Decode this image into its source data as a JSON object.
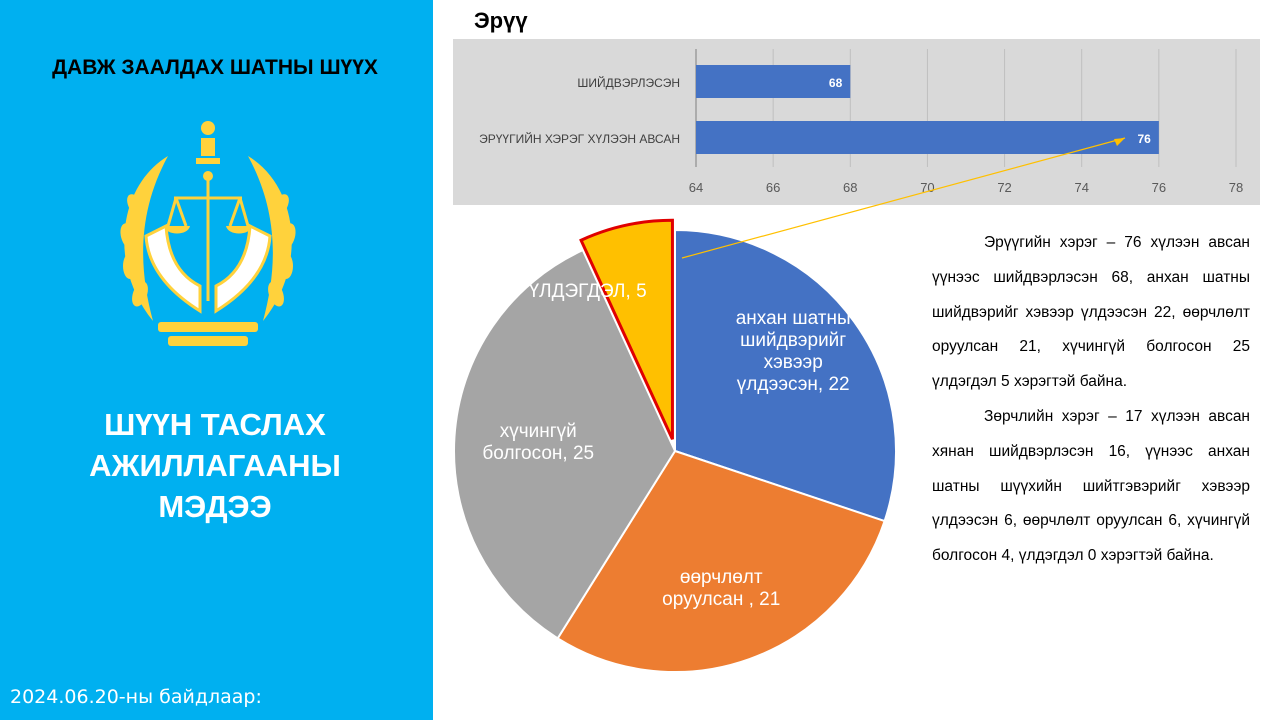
{
  "left_panel": {
    "court_title": "ДАВЖ ЗААЛДАХ ШАТНЫ ШҮҮХ",
    "main_title": "ШҮҮН ТАСЛАХ АЖИЛЛАГААНЫ МЭДЭЭ",
    "date_note": "2024.06.20-ны байдлаар:",
    "emblem_icon": "court-emblem-icon"
  },
  "colors": {
    "panel_blue": "#00b0f0",
    "bar_blue": "#4472c4",
    "pie_blue": "#4472c4",
    "pie_orange": "#ed7d31",
    "pie_gray": "#a5a5a5",
    "pie_yellow": "#ffc000",
    "highlight_red": "#e00000",
    "connector": "#ffc000"
  },
  "description": {
    "p1": "Эрүүгийн хэрэг – 76 хүлээн авсан үүнээс шийдвэрлэсэн 68, анхан шатны шийдвэрийг хэвээр үлдээсэн 22, өөрчлөлт оруулсан 21, хүчингүй болгосон 25 үлдэгдэл 5 хэрэгтэй байна.",
    "p2": "Зөрчлийн хэрэг – 17 хүлээн авсан хянан шийдвэрлэсэн 16, үүнээс анхан шатны шүүхийн шийтгэвэрийг хэвээр үлдээсэн 6, өөрчлөлт оруулсан 6, хүчингүй болгосон 4, үлдэгдэл 0 хэрэгтэй байна."
  },
  "chart_data": [
    {
      "type": "bar",
      "orientation": "horizontal",
      "title": "Эрүү",
      "categories": [
        "ШИЙДВЭРЛЭСЭН",
        "ЭРҮҮГИЙН ХЭРЭГ ХҮЛЭЭН АВСАН"
      ],
      "values": [
        68,
        76
      ],
      "data_labels": [
        "68",
        "76"
      ],
      "xlim": [
        64,
        78
      ],
      "xticks": [
        "64",
        "66",
        "68",
        "70",
        "72",
        "74",
        "76",
        "78"
      ],
      "grid": true
    },
    {
      "type": "pie",
      "slices": [
        {
          "label": "анхан шатны шийдвэрийг хэвээр үлдээсэн",
          "value": 22,
          "text": "анхан шатны шийдвэрийг хэвээр үлдээсэн, 22"
        },
        {
          "label": "өөрчлөлт оруулсан",
          "value": 21,
          "text": "өөрчлөлт оруулсан , 21"
        },
        {
          "label": "хүчингүй болгосон",
          "value": 25,
          "text": "хүчингүй болгосон, 25"
        },
        {
          "label": "ҮЛДЭГДЭЛ",
          "value": 5,
          "text": "ҮЛДЭГДЭЛ, 5",
          "highlighted": true
        }
      ]
    }
  ]
}
